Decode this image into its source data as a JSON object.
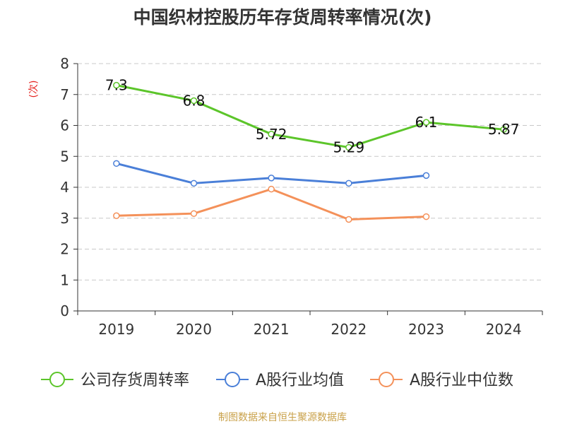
{
  "chart_data": {
    "type": "line",
    "title": "中国织材控股历年存货周转率情况(次)",
    "ylabel": "(次)",
    "xlabel": "",
    "categories": [
      "2019",
      "2020",
      "2021",
      "2022",
      "2023",
      "2024"
    ],
    "ylim": [
      0,
      8
    ],
    "yticks": [
      "0",
      "1",
      "2",
      "3",
      "4",
      "5",
      "6",
      "7",
      "8"
    ],
    "grid": true,
    "legend_position": "bottom",
    "series": [
      {
        "name": "公司存货周转率",
        "color": "#5cc52a",
        "values": [
          7.3,
          6.8,
          5.72,
          5.29,
          6.1,
          5.87
        ],
        "labels": [
          "7.3",
          "6.8",
          "5.72",
          "5.29",
          "6.1",
          "5.87"
        ]
      },
      {
        "name": "A股行业均值",
        "color": "#4a7fd8",
        "values": [
          4.77,
          4.13,
          4.3,
          4.13,
          4.38,
          null
        ]
      },
      {
        "name": "A股行业中位数",
        "color": "#f4915a",
        "values": [
          3.08,
          3.15,
          3.94,
          2.96,
          3.05,
          null
        ]
      }
    ]
  },
  "source": "制图数据来自恒生聚源数据库"
}
